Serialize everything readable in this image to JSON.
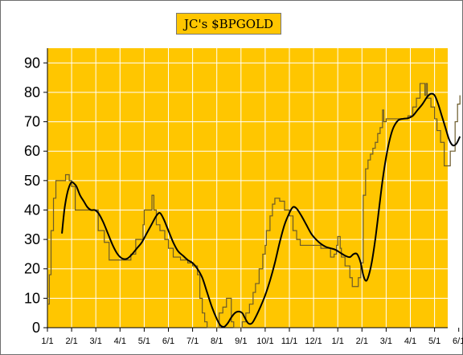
{
  "chart_data": {
    "type": "line",
    "title": "JC's $BPGOLD",
    "xlabel": "",
    "ylabel": "",
    "ylim": [
      0,
      95
    ],
    "yticks": [
      0,
      10,
      20,
      30,
      40,
      50,
      60,
      70,
      80,
      90
    ],
    "xtick_labels": [
      "1/1",
      "2/1",
      "3/1",
      "4/1",
      "5/1",
      "6/1",
      "7/1",
      "8/1",
      "9/1",
      "10/1",
      "11/1",
      "12/1",
      "1/1",
      "2/1",
      "3/1",
      "4/1",
      "5/1",
      "6/1"
    ],
    "xlim": [
      0,
      17.4
    ],
    "grid": true,
    "background_color": "#ffc600",
    "grid_color": "#ffffff",
    "series": [
      {
        "style": "step",
        "color": "#6b5a2a",
        "points": [
          [
            0.0,
            8
          ],
          [
            0.08,
            18
          ],
          [
            0.15,
            33
          ],
          [
            0.25,
            44
          ],
          [
            0.35,
            50
          ],
          [
            0.5,
            50
          ],
          [
            0.75,
            52
          ],
          [
            0.9,
            50
          ],
          [
            1.0,
            48
          ],
          [
            1.15,
            40
          ],
          [
            1.5,
            40
          ],
          [
            1.9,
            40
          ],
          [
            2.1,
            33
          ],
          [
            2.35,
            29
          ],
          [
            2.55,
            23
          ],
          [
            2.9,
            23
          ],
          [
            3.2,
            23
          ],
          [
            3.45,
            25
          ],
          [
            3.65,
            30
          ],
          [
            3.95,
            35
          ],
          [
            4.0,
            40
          ],
          [
            4.25,
            40
          ],
          [
            4.32,
            45
          ],
          [
            4.4,
            40
          ],
          [
            4.5,
            35
          ],
          [
            4.65,
            33
          ],
          [
            4.85,
            30
          ],
          [
            5.0,
            27
          ],
          [
            5.2,
            24
          ],
          [
            5.5,
            23
          ],
          [
            5.8,
            22
          ],
          [
            6.0,
            21
          ],
          [
            6.2,
            18
          ],
          [
            6.3,
            10
          ],
          [
            6.4,
            5
          ],
          [
            6.5,
            2
          ],
          [
            6.6,
            0
          ],
          [
            6.75,
            0
          ],
          [
            6.9,
            0
          ],
          [
            7.1,
            5
          ],
          [
            7.25,
            7
          ],
          [
            7.4,
            10
          ],
          [
            7.6,
            2
          ],
          [
            7.7,
            0
          ],
          [
            7.9,
            0
          ],
          [
            8.05,
            2
          ],
          [
            8.2,
            5
          ],
          [
            8.35,
            8
          ],
          [
            8.5,
            12
          ],
          [
            8.6,
            15
          ],
          [
            8.75,
            20
          ],
          [
            8.9,
            25
          ],
          [
            9.0,
            28
          ],
          [
            9.05,
            33
          ],
          [
            9.2,
            38
          ],
          [
            9.3,
            42
          ],
          [
            9.4,
            44
          ],
          [
            9.6,
            43
          ],
          [
            9.8,
            40
          ],
          [
            10.0,
            38
          ],
          [
            10.15,
            33
          ],
          [
            10.3,
            30
          ],
          [
            10.45,
            28
          ],
          [
            11.0,
            28
          ],
          [
            11.3,
            27
          ],
          [
            11.6,
            27
          ],
          [
            11.7,
            24
          ],
          [
            11.85,
            25
          ],
          [
            11.95,
            28
          ],
          [
            12.0,
            31
          ],
          [
            12.1,
            27
          ],
          [
            12.15,
            24
          ],
          [
            12.3,
            21
          ],
          [
            12.5,
            17
          ],
          [
            12.6,
            14
          ],
          [
            12.75,
            14
          ],
          [
            12.85,
            17
          ],
          [
            12.95,
            22
          ],
          [
            13.05,
            45
          ],
          [
            13.15,
            54
          ],
          [
            13.25,
            57
          ],
          [
            13.35,
            59
          ],
          [
            13.45,
            61
          ],
          [
            13.55,
            63
          ],
          [
            13.65,
            66
          ],
          [
            13.75,
            68
          ],
          [
            13.85,
            74
          ],
          [
            13.9,
            70
          ],
          [
            14.0,
            71
          ],
          [
            14.2,
            71
          ],
          [
            14.5,
            71
          ],
          [
            14.7,
            71
          ],
          [
            14.9,
            72
          ],
          [
            15.1,
            75
          ],
          [
            15.25,
            78
          ],
          [
            15.4,
            83
          ],
          [
            15.55,
            83
          ],
          [
            15.6,
            79
          ],
          [
            15.65,
            83
          ],
          [
            15.7,
            78
          ],
          [
            15.85,
            75
          ],
          [
            16.0,
            71
          ],
          [
            16.1,
            67
          ],
          [
            16.25,
            63
          ],
          [
            16.4,
            55
          ],
          [
            16.55,
            55
          ],
          [
            16.65,
            60
          ],
          [
            16.85,
            70
          ],
          [
            16.95,
            76
          ],
          [
            17.05,
            79
          ]
        ]
      },
      {
        "style": "smooth",
        "color": "#000000",
        "points": [
          [
            0.6,
            32
          ],
          [
            0.7,
            40
          ],
          [
            0.8,
            45
          ],
          [
            0.9,
            48
          ],
          [
            1.0,
            49.5
          ],
          [
            1.1,
            49
          ],
          [
            1.2,
            48
          ],
          [
            1.35,
            45
          ],
          [
            1.5,
            43
          ],
          [
            1.65,
            41
          ],
          [
            1.8,
            40
          ],
          [
            1.95,
            40
          ],
          [
            2.1,
            39
          ],
          [
            2.3,
            36
          ],
          [
            2.5,
            32
          ],
          [
            2.7,
            28
          ],
          [
            2.9,
            25
          ],
          [
            3.1,
            23.5
          ],
          [
            3.3,
            23.5
          ],
          [
            3.5,
            25
          ],
          [
            3.7,
            27
          ],
          [
            3.9,
            29
          ],
          [
            4.1,
            32
          ],
          [
            4.3,
            35
          ],
          [
            4.5,
            38
          ],
          [
            4.65,
            39
          ],
          [
            4.8,
            37
          ],
          [
            5.0,
            33
          ],
          [
            5.2,
            29
          ],
          [
            5.4,
            26
          ],
          [
            5.6,
            24.5
          ],
          [
            5.8,
            23
          ],
          [
            6.0,
            22
          ],
          [
            6.2,
            20
          ],
          [
            6.4,
            17
          ],
          [
            6.6,
            12
          ],
          [
            6.8,
            7
          ],
          [
            7.0,
            3
          ],
          [
            7.15,
            0.8
          ],
          [
            7.3,
            0.3
          ],
          [
            7.45,
            1.5
          ],
          [
            7.6,
            3.5
          ],
          [
            7.75,
            5
          ],
          [
            7.9,
            5.5
          ],
          [
            8.05,
            5
          ],
          [
            8.15,
            3.5
          ],
          [
            8.3,
            1.5
          ],
          [
            8.45,
            1.5
          ],
          [
            8.6,
            3.5
          ],
          [
            8.8,
            7
          ],
          [
            9.0,
            11
          ],
          [
            9.2,
            16
          ],
          [
            9.4,
            22
          ],
          [
            9.6,
            29
          ],
          [
            9.8,
            35
          ],
          [
            10.0,
            39
          ],
          [
            10.15,
            41
          ],
          [
            10.3,
            40.5
          ],
          [
            10.5,
            38
          ],
          [
            10.7,
            35
          ],
          [
            10.9,
            32
          ],
          [
            11.1,
            30
          ],
          [
            11.3,
            28.5
          ],
          [
            11.5,
            27.5
          ],
          [
            11.7,
            27
          ],
          [
            11.9,
            26.5
          ],
          [
            12.1,
            25.5
          ],
          [
            12.3,
            24.5
          ],
          [
            12.5,
            24
          ],
          [
            12.65,
            25
          ],
          [
            12.8,
            25
          ],
          [
            12.95,
            22
          ],
          [
            13.05,
            18
          ],
          [
            13.15,
            16
          ],
          [
            13.25,
            17
          ],
          [
            13.4,
            22
          ],
          [
            13.55,
            30
          ],
          [
            13.7,
            40
          ],
          [
            13.85,
            50
          ],
          [
            14.0,
            58
          ],
          [
            14.15,
            64
          ],
          [
            14.3,
            68
          ],
          [
            14.5,
            70.5
          ],
          [
            14.7,
            71
          ],
          [
            14.9,
            71.2
          ],
          [
            15.1,
            72
          ],
          [
            15.3,
            74
          ],
          [
            15.5,
            76
          ],
          [
            15.7,
            78.5
          ],
          [
            15.85,
            79.5
          ],
          [
            16.0,
            79
          ],
          [
            16.15,
            76
          ],
          [
            16.3,
            72
          ],
          [
            16.45,
            68
          ],
          [
            16.6,
            64
          ],
          [
            16.75,
            62
          ],
          [
            16.9,
            62.5
          ],
          [
            17.05,
            65
          ]
        ]
      }
    ]
  }
}
